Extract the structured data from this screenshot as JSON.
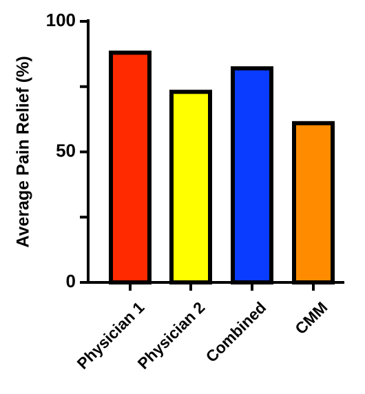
{
  "chart_data": {
    "type": "bar",
    "categories": [
      "Physician 1",
      "Physician 2",
      "Combined",
      "CMM"
    ],
    "values": [
      88,
      73,
      82,
      61
    ],
    "colors": [
      "#ff2a00",
      "#ffff00",
      "#0a3cff",
      "#ff8c00"
    ],
    "ylabel": "Average Pain Relief (%)",
    "xlabel": "",
    "title": "",
    "ylim": [
      0,
      100
    ],
    "y_ticks_labeled": [
      0,
      50,
      100
    ],
    "y_ticks_minor": [
      25,
      75
    ],
    "grid": false
  }
}
